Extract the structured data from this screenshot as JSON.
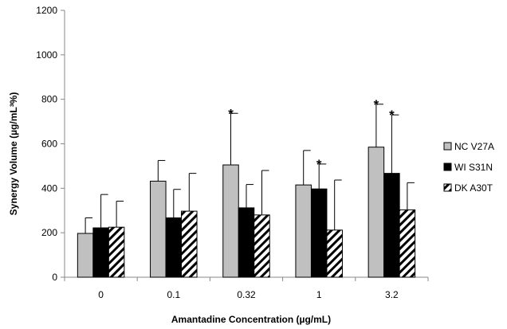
{
  "chart_data": {
    "type": "bar",
    "title": "",
    "xlabel": "Amantadine Concentration (µg/mL)",
    "ylabel": "Synergy Volume (µg/mL³%)",
    "ylim": [
      0,
      1200
    ],
    "yticks": [
      0,
      200,
      400,
      600,
      800,
      1000,
      1200
    ],
    "categories": [
      "0",
      "0.1",
      "0.32",
      "1",
      "3.2"
    ],
    "legend_position": "right",
    "grid": false,
    "series": [
      {
        "name": "NC V27A",
        "color": "#c0c0c0",
        "pattern": "solid",
        "values": [
          197,
          432,
          505,
          415,
          585
        ],
        "errors": [
          70,
          93,
          232,
          155,
          193
        ],
        "significant": [
          false,
          false,
          true,
          false,
          true
        ]
      },
      {
        "name": "WI S31N",
        "color": "#000000",
        "pattern": "solid",
        "values": [
          222,
          267,
          312,
          397,
          467
        ],
        "errors": [
          150,
          128,
          105,
          112,
          263
        ],
        "significant": [
          false,
          false,
          false,
          true,
          true
        ]
      },
      {
        "name": "DK A30T",
        "color": "#ffffff",
        "pattern": "hatch",
        "values": [
          225,
          297,
          280,
          212,
          303
        ],
        "errors": [
          117,
          170,
          200,
          225,
          122
        ],
        "significant": [
          false,
          false,
          false,
          false,
          false
        ]
      }
    ],
    "significance_marker": "*"
  }
}
